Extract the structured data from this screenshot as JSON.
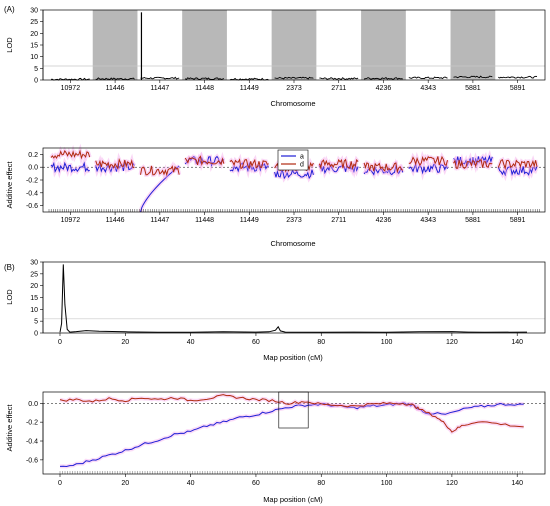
{
  "panel_labels": {
    "a": "(A)",
    "b": "(B)"
  },
  "colors": {
    "a": "#1f1fd6",
    "d": "#b02a10",
    "lod": "#000000",
    "shade": "#b8b8b8",
    "band": "#f4a6ea",
    "threshold": "#c8c8c8"
  },
  "chart_data": [
    {
      "type": "line",
      "panel": "(A) top",
      "ylabel": "LOD",
      "xlabel": "Chromosome",
      "ylim": [
        0,
        30
      ],
      "yticks": [
        0,
        5,
        10,
        15,
        20,
        25,
        30
      ],
      "categories": [
        "10972",
        "11446",
        "11447",
        "11448",
        "11449",
        "2373",
        "2711",
        "4236",
        "4343",
        "5881",
        "5891"
      ],
      "shaded_alternate": true,
      "threshold": 6,
      "peak": {
        "category": "11447",
        "value": 29
      },
      "series": [
        {
          "values_baseline": [
            0.3,
            0.5,
            0.8,
            0.6,
            0.4,
            0.8,
            0.6,
            0.7,
            0.9,
            1.3,
            1.2
          ]
        }
      ]
    },
    {
      "type": "line",
      "panel": "(A) bottom",
      "ylabel": "Additive effect",
      "xlabel": "Chromosome",
      "ylim": [
        -0.7,
        0.3
      ],
      "yticks": [
        0.2,
        0.0,
        -0.2,
        -0.4,
        -0.6
      ],
      "categories": [
        "10972",
        "11446",
        "11447",
        "11448",
        "11449",
        "2373",
        "2711",
        "4236",
        "4343",
        "5881",
        "5891"
      ],
      "legend": {
        "position": "top",
        "entries": [
          "a",
          "d"
        ]
      },
      "series": [
        {
          "name": "a",
          "color": "#1f1fd6",
          "means": [
            0.0,
            0.0,
            -0.7,
            0.1,
            0.0,
            -0.1,
            -0.02,
            -0.05,
            -0.02,
            0.1,
            -0.05
          ]
        },
        {
          "name": "d",
          "color": "#b02a10",
          "means": [
            0.2,
            0.05,
            -0.05,
            0.1,
            0.05,
            0.0,
            0.05,
            0.0,
            0.1,
            0.05,
            0.05
          ]
        }
      ]
    },
    {
      "type": "line",
      "panel": "(B) top",
      "ylabel": "LOD",
      "xlabel": "Map position (cM)",
      "xlim": [
        0,
        143
      ],
      "xticks": [
        0,
        20,
        40,
        60,
        80,
        100,
        120,
        140
      ],
      "ylim": [
        0,
        30
      ],
      "yticks": [
        0,
        5,
        10,
        15,
        20,
        25,
        30
      ],
      "threshold": 6,
      "series": [
        {
          "points": [
            [
              0,
              0.3
            ],
            [
              0.5,
              4
            ],
            [
              1,
              29
            ],
            [
              1.5,
              12
            ],
            [
              2.2,
              1.5
            ],
            [
              3,
              0.4
            ],
            [
              5,
              0.6
            ],
            [
              8,
              1
            ],
            [
              12,
              0.7
            ],
            [
              20,
              0.5
            ],
            [
              30,
              0.3
            ],
            [
              40,
              0.3
            ],
            [
              50,
              0.5
            ],
            [
              60,
              0.4
            ],
            [
              64,
              0.5
            ],
            [
              66,
              1.2
            ],
            [
              66.8,
              2.6
            ],
            [
              67.5,
              0.9
            ],
            [
              69,
              0.4
            ],
            [
              80,
              0.3
            ],
            [
              90,
              0.4
            ],
            [
              100,
              0.3
            ],
            [
              110,
              0.5
            ],
            [
              120,
              0.6
            ],
            [
              125,
              0.4
            ],
            [
              130,
              0.3
            ],
            [
              143,
              0.4
            ]
          ]
        }
      ]
    },
    {
      "type": "line",
      "panel": "(B) bottom",
      "ylabel": "Additive effect",
      "xlabel": "Map position (cM)",
      "xlim": [
        0,
        143
      ],
      "xticks": [
        0,
        20,
        40,
        60,
        80,
        100,
        120,
        140
      ],
      "ylim": [
        -0.75,
        0.12
      ],
      "yticks": [
        0.0,
        -0.2,
        -0.4,
        -0.6
      ],
      "inset_box": [
        67,
        76
      ],
      "series": [
        {
          "name": "a",
          "color": "#1f1fd6",
          "points": [
            [
              0,
              -0.68
            ],
            [
              5,
              -0.65
            ],
            [
              10,
              -0.6
            ],
            [
              15,
              -0.55
            ],
            [
              20,
              -0.5
            ],
            [
              25,
              -0.44
            ],
            [
              30,
              -0.39
            ],
            [
              35,
              -0.33
            ],
            [
              40,
              -0.3
            ],
            [
              45,
              -0.24
            ],
            [
              50,
              -0.2
            ],
            [
              55,
              -0.15
            ],
            [
              60,
              -0.12
            ],
            [
              65,
              -0.08
            ],
            [
              70,
              -0.04
            ],
            [
              75,
              -0.02
            ],
            [
              80,
              -0.01
            ],
            [
              85,
              -0.03
            ],
            [
              90,
              -0.05
            ],
            [
              95,
              -0.03
            ],
            [
              100,
              -0.02
            ],
            [
              105,
              0.0
            ],
            [
              108,
              -0.02
            ],
            [
              112,
              -0.1
            ],
            [
              118,
              -0.12
            ],
            [
              125,
              -0.05
            ],
            [
              130,
              -0.03
            ],
            [
              135,
              -0.01
            ],
            [
              142,
              -0.01
            ]
          ]
        },
        {
          "name": "d",
          "color": "#b02a10",
          "points": [
            [
              0,
              0.03
            ],
            [
              5,
              0.04
            ],
            [
              10,
              0.02
            ],
            [
              15,
              0.05
            ],
            [
              20,
              0.03
            ],
            [
              25,
              0.06
            ],
            [
              30,
              0.04
            ],
            [
              35,
              0.06
            ],
            [
              40,
              0.03
            ],
            [
              45,
              0.05
            ],
            [
              50,
              0.08
            ],
            [
              55,
              0.06
            ],
            [
              60,
              0.04
            ],
            [
              65,
              0.03
            ],
            [
              70,
              0.0
            ],
            [
              75,
              0.02
            ],
            [
              80,
              -0.01
            ],
            [
              85,
              -0.02
            ],
            [
              90,
              -0.03
            ],
            [
              95,
              -0.01
            ],
            [
              100,
              0.0
            ],
            [
              105,
              0.0
            ],
            [
              108,
              -0.02
            ],
            [
              110,
              -0.06
            ],
            [
              115,
              -0.14
            ],
            [
              118,
              -0.22
            ],
            [
              120,
              -0.3
            ],
            [
              123,
              -0.24
            ],
            [
              128,
              -0.19
            ],
            [
              135,
              -0.22
            ],
            [
              142,
              -0.25
            ]
          ]
        }
      ]
    }
  ]
}
